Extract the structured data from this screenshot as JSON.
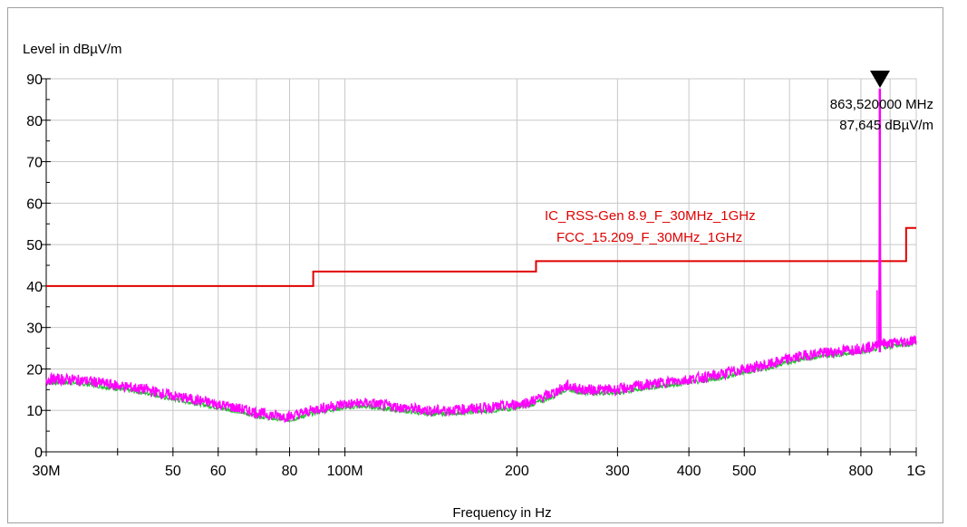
{
  "chart_data": {
    "type": "line",
    "ylabel": "Level in dBµV/m",
    "xlabel": "Frequency in Hz",
    "x_scale": "log",
    "xlim": [
      30000000,
      1000000000
    ],
    "ylim": [
      0,
      90
    ],
    "grid": true,
    "y_ticks": [
      {
        "value": 0,
        "label": "0"
      },
      {
        "value": 10,
        "label": "10"
      },
      {
        "value": 20,
        "label": "20"
      },
      {
        "value": 30,
        "label": "30"
      },
      {
        "value": 40,
        "label": "40"
      },
      {
        "value": 50,
        "label": "50"
      },
      {
        "value": 60,
        "label": "60"
      },
      {
        "value": 70,
        "label": "70"
      },
      {
        "value": 80,
        "label": "80"
      },
      {
        "value": 90,
        "label": "90"
      }
    ],
    "x_ticks": [
      {
        "value": 30000000,
        "label": "30M"
      },
      {
        "value": 50000000,
        "label": "50"
      },
      {
        "value": 60000000,
        "label": "60"
      },
      {
        "value": 80000000,
        "label": "80"
      },
      {
        "value": 100000000,
        "label": "100M"
      },
      {
        "value": 200000000,
        "label": "200"
      },
      {
        "value": 300000000,
        "label": "300"
      },
      {
        "value": 400000000,
        "label": "400"
      },
      {
        "value": 500000000,
        "label": "500"
      },
      {
        "value": 800000000,
        "label": "800"
      },
      {
        "value": 1000000000,
        "label": "1G"
      }
    ],
    "x_minor_ticks": [
      40000000,
      70000000,
      90000000,
      600000000,
      700000000,
      900000000
    ],
    "limit_lines": {
      "color": "#e00000",
      "labels": [
        "IC_RSS-Gen 8.9_F_30MHz_1GHz",
        "FCC_15.209_F_30MHz_1GHz"
      ],
      "steps": [
        {
          "x": [
            30000000,
            88000000
          ],
          "y": 40.0
        },
        {
          "x": [
            88000000,
            216000000
          ],
          "y": 43.5
        },
        {
          "x": [
            216000000,
            960000000
          ],
          "y": 46.0
        },
        {
          "x": [
            960000000,
            1000000000
          ],
          "y": 54.0
        }
      ]
    },
    "series": [
      {
        "color": "#ff00ff",
        "points": [
          [
            30000000,
            17.5
          ],
          [
            33000000,
            17.5
          ],
          [
            36000000,
            17.0
          ],
          [
            40000000,
            16.0
          ],
          [
            45000000,
            15.0
          ],
          [
            50000000,
            13.5
          ],
          [
            55000000,
            12.5
          ],
          [
            60000000,
            11.5
          ],
          [
            65000000,
            10.5
          ],
          [
            70000000,
            9.5
          ],
          [
            75000000,
            8.8
          ],
          [
            80000000,
            8.5
          ],
          [
            85000000,
            9.5
          ],
          [
            90000000,
            10.5
          ],
          [
            100000000,
            11.5
          ],
          [
            110000000,
            11.8
          ],
          [
            120000000,
            11.0
          ],
          [
            130000000,
            10.5
          ],
          [
            140000000,
            10.0
          ],
          [
            150000000,
            10.0
          ],
          [
            170000000,
            10.5
          ],
          [
            190000000,
            11.0
          ],
          [
            210000000,
            12.0
          ],
          [
            230000000,
            14.0
          ],
          [
            245000000,
            16.0
          ],
          [
            260000000,
            15.0
          ],
          [
            300000000,
            15.0
          ],
          [
            350000000,
            16.5
          ],
          [
            400000000,
            17.5
          ],
          [
            450000000,
            18.5
          ],
          [
            500000000,
            20.0
          ],
          [
            550000000,
            21.0
          ],
          [
            600000000,
            22.5
          ],
          [
            650000000,
            23.5
          ],
          [
            700000000,
            24.0
          ],
          [
            750000000,
            24.5
          ],
          [
            800000000,
            25.0
          ],
          [
            850000000,
            25.5
          ],
          [
            860000000,
            27.0
          ],
          [
            863520000,
            87.645
          ],
          [
            867000000,
            27.0
          ],
          [
            880000000,
            26.0
          ],
          [
            950000000,
            26.5
          ],
          [
            1000000000,
            27.0
          ]
        ]
      }
    ],
    "marker": {
      "x": 863520000,
      "y": 87.645,
      "freq_label": "863,520000 MHz",
      "level_label": "87,645 dBµV/m"
    }
  }
}
